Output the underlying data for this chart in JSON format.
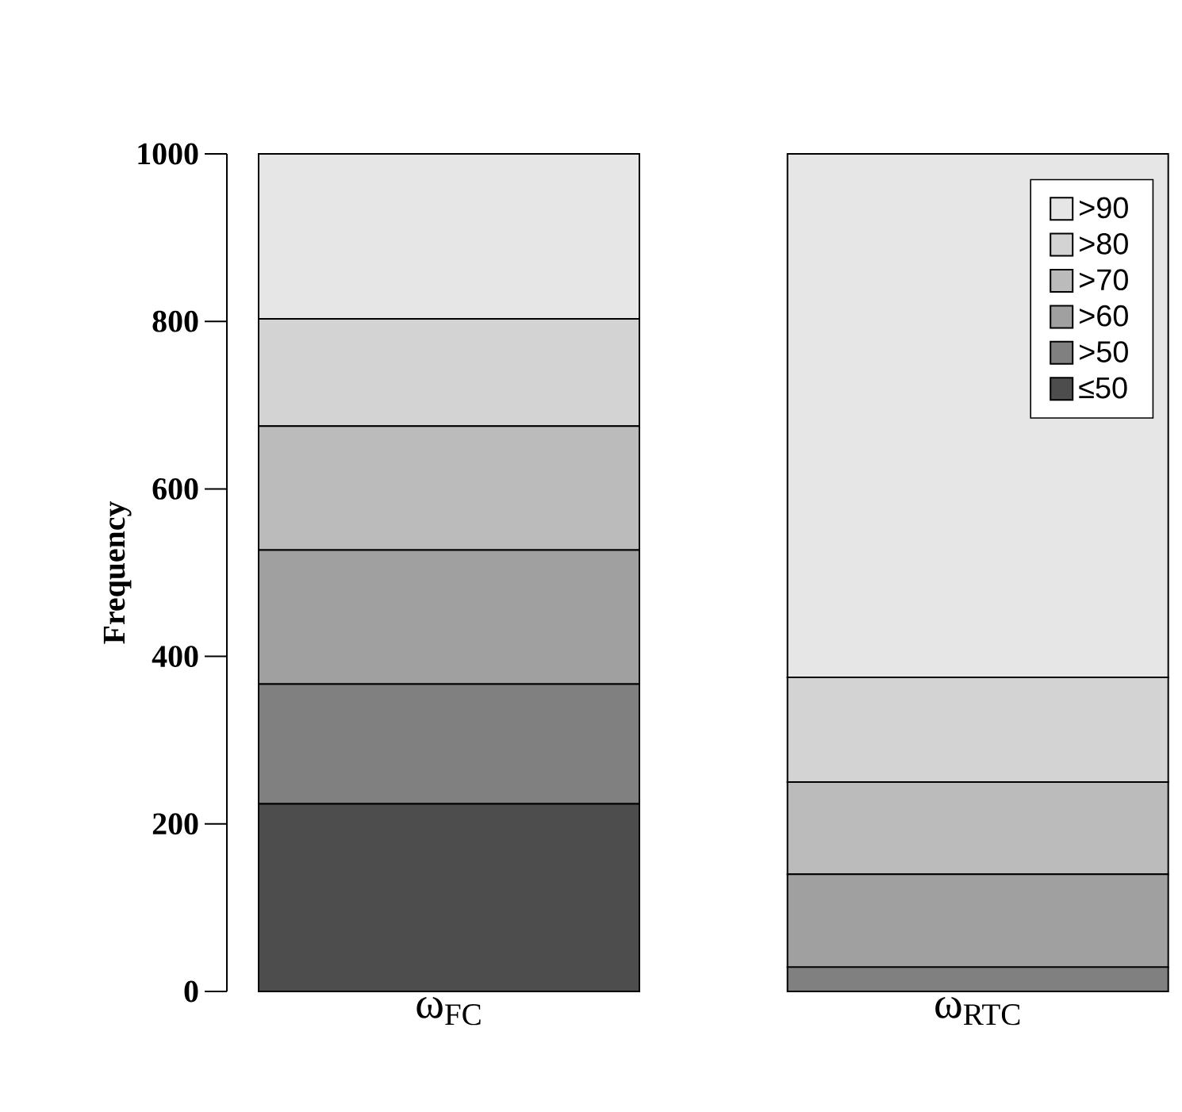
{
  "chart_data": {
    "type": "bar",
    "stacked": true,
    "ylabel": "Frequency",
    "categories": [
      "ω$_{FC}$",
      "ω$_{RTC}$"
    ],
    "series": [
      {
        "name": "≤50",
        "color": "#4d4d4d",
        "values": [
          224,
          0
        ]
      },
      {
        "name": ">50",
        "color": "#808080",
        "values": [
          143,
          29
        ]
      },
      {
        "name": ">60",
        "color": "#a0a0a0",
        "values": [
          160,
          111
        ]
      },
      {
        "name": ">70",
        "color": "#bbbbbb",
        "values": [
          148,
          110
        ]
      },
      {
        "name": ">80",
        "color": "#d3d3d3",
        "values": [
          128,
          125
        ]
      },
      {
        "name": ">90",
        "color": "#e6e6e6",
        "values": [
          197,
          625
        ]
      }
    ],
    "ylim": [
      0,
      1000
    ],
    "yticks": [
      0,
      200,
      400,
      600,
      800,
      1000
    ],
    "legend": "top right"
  }
}
